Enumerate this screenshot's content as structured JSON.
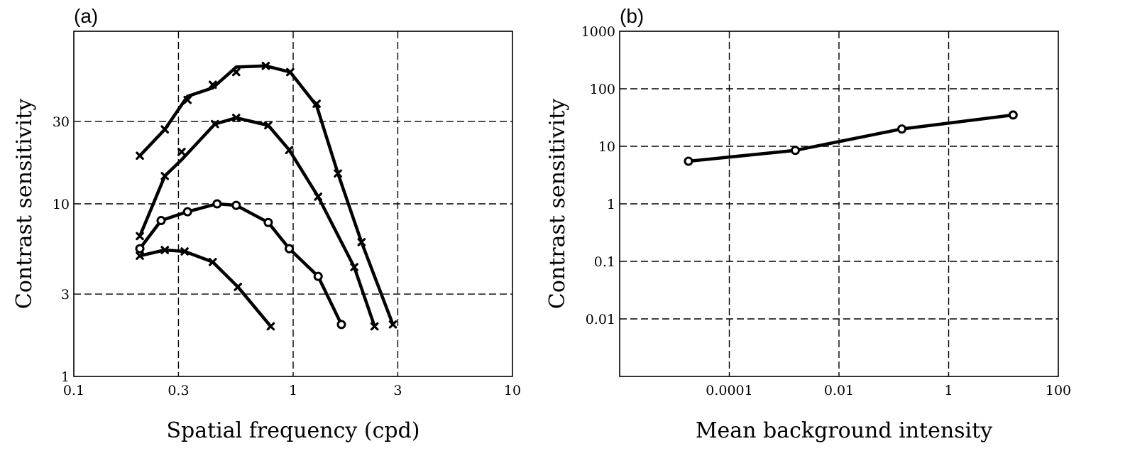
{
  "chart_data": [
    {
      "id": "a",
      "panel_label": "(a)",
      "type": "line",
      "xlabel": "Spatial frequency (cpd)",
      "ylabel": "Contrast sensitivity",
      "xscale": "log",
      "yscale": "log",
      "xlim": [
        0.1,
        10
      ],
      "ylim": [
        1,
        100
      ],
      "xticks": [
        0.1,
        0.3,
        1,
        3,
        10
      ],
      "xtick_labels": [
        "0.1",
        "0.3",
        "1",
        "3",
        "10"
      ],
      "yticks": [
        1,
        3,
        10,
        30
      ],
      "ytick_labels": [
        "1",
        "3",
        "10",
        "30"
      ],
      "grid": true,
      "series": [
        {
          "marker": "x",
          "x": [
            0.2,
            0.26,
            0.33,
            0.43,
            0.55,
            0.75,
            0.97,
            1.28,
            1.6,
            2.05,
            2.85
          ],
          "y": [
            19,
            27,
            40,
            49,
            58,
            63,
            58,
            38,
            15,
            6,
            2
          ],
          "line": {
            "x": [
              0.2,
              0.26,
              0.33,
              0.43,
              0.55,
              0.75,
              0.97,
              1.28,
              1.6,
              2.05,
              2.85
            ],
            "y": [
              19,
              27,
              42,
              47,
              62,
              63,
              58,
              37,
              15,
              6,
              2
            ]
          }
        },
        {
          "marker": "x",
          "x": [
            0.2,
            0.26,
            0.31,
            0.44,
            0.55,
            0.77,
            0.96,
            1.3,
            1.9,
            2.35
          ],
          "y": [
            6.5,
            14.5,
            20,
            29,
            31.5,
            28.5,
            20.5,
            11,
            4.3,
            1.95
          ],
          "line": {
            "x": [
              0.2,
              0.26,
              0.31,
              0.44,
              0.55,
              0.77,
              0.96,
              1.3,
              1.9,
              2.35
            ],
            "y": [
              6.5,
              14.5,
              18,
              29,
              31.5,
              28.5,
              20.5,
              11,
              4.3,
              1.95
            ]
          }
        },
        {
          "marker": "o",
          "x": [
            0.2,
            0.25,
            0.33,
            0.45,
            0.55,
            0.77,
            0.96,
            1.3,
            1.66
          ],
          "y": [
            5.5,
            8,
            9,
            10,
            9.8,
            7.8,
            5.5,
            3.8,
            2
          ],
          "line": {
            "x": [
              0.2,
              0.25,
              0.33,
              0.45,
              0.55,
              0.77,
              0.96,
              1.3,
              1.66
            ],
            "y": [
              5.5,
              8,
              9,
              10,
              9.8,
              7.8,
              5.5,
              3.8,
              2
            ]
          }
        },
        {
          "marker": "x",
          "x": [
            0.2,
            0.26,
            0.32,
            0.43,
            0.56,
            0.79
          ],
          "y": [
            5,
            5.4,
            5.3,
            4.6,
            3.3,
            1.95
          ],
          "line": {
            "x": [
              0.2,
              0.26,
              0.32,
              0.43,
              0.56,
              0.79
            ],
            "y": [
              5,
              5.4,
              5.3,
              4.6,
              3.3,
              1.95
            ]
          }
        }
      ]
    },
    {
      "id": "b",
      "panel_label": "(b)",
      "type": "line",
      "xlabel": "Mean background intensity",
      "ylabel": "Contrast sensitivity",
      "xscale": "log",
      "yscale": "log",
      "xlim": [
        1e-06,
        100
      ],
      "ylim": [
        0.001,
        1000
      ],
      "xticks": [
        0.0001,
        0.01,
        1,
        100
      ],
      "xtick_labels": [
        "0.0001",
        "0.01",
        "1",
        "100"
      ],
      "xgrid": [
        0.0001,
        0.01,
        1
      ],
      "yticks": [
        0.01,
        0.1,
        1,
        10,
        100,
        1000
      ],
      "ytick_labels": [
        "0.01",
        "0.1",
        "1",
        "10",
        "100",
        "1000"
      ],
      "ygrid": [
        0.01,
        0.1,
        1,
        10,
        100
      ],
      "grid": true,
      "series": [
        {
          "marker": "o",
          "x": [
            1.8e-05,
            0.0016,
            0.14,
            15
          ],
          "y": [
            5.5,
            8.5,
            20,
            35
          ]
        }
      ]
    }
  ]
}
